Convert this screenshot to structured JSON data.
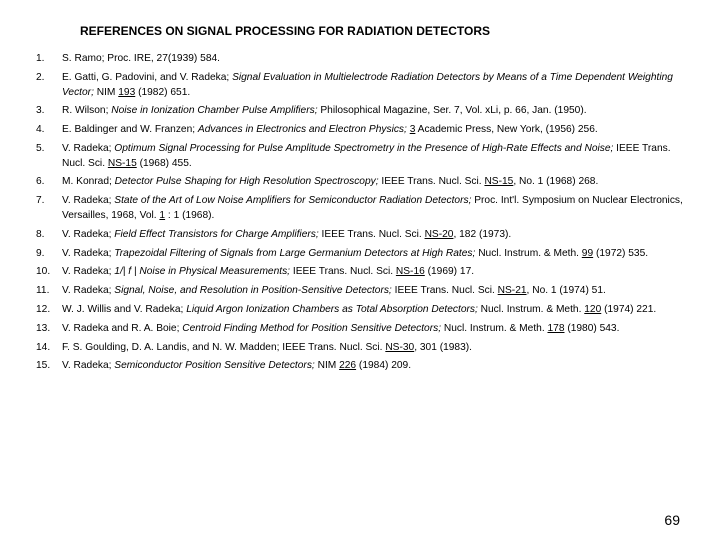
{
  "title": "REFERENCES ON SIGNAL PROCESSING FOR RADIATION DETECTORS",
  "page_number": "69",
  "text_color": "#000000",
  "background_color": "#ffffff",
  "title_fontsize": 12,
  "body_fontsize": 10.2,
  "references": [
    {
      "n": "1.",
      "html": "S. Ramo; Proc. IRE, 27(1939) 584."
    },
    {
      "n": "2.",
      "html": "E. Gatti, G. Padovini, and V. Radeka; <em>Signal Evaluation in Multielectrode Radiation Detectors by Means of a Time Dependent Weighting Vector;</em> NIM <span class=\"u\">193</span> (1982) 651."
    },
    {
      "n": "3.",
      "html": "R. Wilson; <em>Noise in Ionization Chamber Pulse Amplifiers;</em> Philosophical Magazine, Ser. 7, Vol. xLi, p. 66, Jan. (1950)."
    },
    {
      "n": "4.",
      "html": "E. Baldinger and W. Franzen; <em>Advances in Electronics and Electron Physics;</em> <span class=\"u\">3</span> Academic Press, New York, (1956) 256."
    },
    {
      "n": "5.",
      "html": "V. Radeka; <em>Optimum Signal Processing for Pulse Amplitude Spectrometry in the Presence of High-Rate Effects and Noise;</em> IEEE Trans. Nucl. Sci. <span class=\"u\">NS-15</span> (1968) 455."
    },
    {
      "n": "6.",
      "html": "M. Konrad; <em>Detector Pulse Shaping for High Resolution Spectroscopy;</em> IEEE Trans. Nucl. Sci. <span class=\"u\">NS-15</span>, No. 1 (1968) 268."
    },
    {
      "n": "7.",
      "html": "V. Radeka; <em>State of the Art of Low Noise Amplifiers for Semiconductor Radiation Detectors;</em> Proc. Int'l. Symposium on Nuclear Electronics, Versailles, 1968, Vol. <span class=\"u\">1</span> : 1 (1968)."
    },
    {
      "n": "8.",
      "html": "V. Radeka; <em>Field Effect Transistors for Charge Amplifiers;</em> IEEE Trans. Nucl. Sci. <span class=\"u\">NS-20</span>, 182 (1973)."
    },
    {
      "n": "9.",
      "html": "V. Radeka; <em>Trapezoidal Filtering of Signals from Large Germanium Detectors at High Rates;</em> Nucl. Instrum. &amp; Meth. <span class=\"u\">99</span> (1972) 535."
    },
    {
      "n": "10.",
      "html": "V. Radeka; <em>1/| f | Noise in Physical Measurements;</em> IEEE Trans. Nucl. Sci. <span class=\"u\">NS-16</span> (1969) 17."
    },
    {
      "n": "11.",
      "html": "V. Radeka; <em>Signal, Noise, and Resolution in Position-Sensitive Detectors;</em> IEEE Trans. Nucl. Sci. <span class=\"u\">NS-21</span>, No. 1 (1974) 51."
    },
    {
      "n": "12.",
      "html": "W. J. Willis and V. Radeka; <em>Liquid Argon Ionization Chambers as Total Absorption Detectors;</em> Nucl. Instrum. &amp; Meth. <span class=\"u\">120</span> (1974) 221."
    },
    {
      "n": "13.",
      "html": "V. Radeka and R. A. Boie; <em>Centroid Finding Method for Position Sensitive Detectors;</em> Nucl. Instrum. &amp; Meth. <span class=\"u\">178</span> (1980) 543."
    },
    {
      "n": "14.",
      "html": "F. S. Goulding, D. A. Landis, and N. W. Madden; IEEE Trans. Nucl. Sci. <span class=\"u\">NS-30</span>, 301 (1983)."
    },
    {
      "n": "15.",
      "html": "V. Radeka; <em>Semiconductor Position Sensitive Detectors;</em> NIM <span class=\"u\">226</span> (1984) 209."
    }
  ]
}
